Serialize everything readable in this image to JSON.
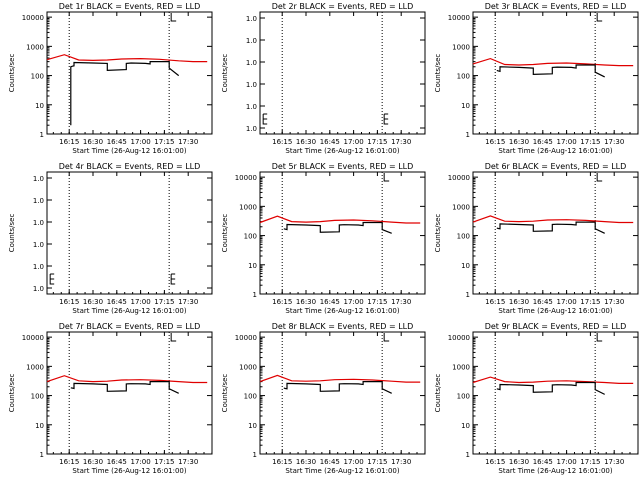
{
  "colors": {
    "events": "#000000",
    "lld": "#e00000",
    "background": "#ffffff"
  },
  "chart_data": [
    {
      "type": "line",
      "title": "Det 1r BLACK = Events, RED = LLD",
      "xlabel": "Start Time (26-Aug-12 16:01:00)",
      "ylabel": "Counts/sec",
      "scale": "log",
      "ylim": [
        1,
        15000
      ],
      "yticks": [
        "1",
        "10",
        "100",
        "1000",
        "10000"
      ],
      "xlim": [
        16.0167,
        17.75
      ],
      "xticks": [
        "16:15",
        "16:30",
        "16:45",
        "17:00",
        "17:15",
        "17:30"
      ],
      "vlines": [
        16.25,
        17.3
      ],
      "series": [
        {
          "name": "LLD",
          "color": "#e00000",
          "x": [
            16.0167,
            16.2,
            16.35,
            16.5,
            16.65,
            16.8,
            17.0,
            17.2,
            17.4,
            17.55,
            17.7
          ],
          "y": [
            350,
            520,
            340,
            330,
            340,
            370,
            380,
            360,
            320,
            300,
            300
          ]
        },
        {
          "name": "Events",
          "color": "#000000",
          "x": [
            16.2667,
            16.2667,
            16.2833,
            16.3,
            16.3,
            16.5,
            16.65,
            16.65,
            16.85,
            16.85,
            16.9,
            17.05,
            17.1,
            17.1,
            17.3,
            17.3,
            17.4
          ],
          "y": [
            2,
            200,
            210,
            215,
            280,
            270,
            260,
            150,
            160,
            260,
            270,
            260,
            250,
            300,
            300,
            180,
            100
          ]
        }
      ]
    },
    {
      "type": "line",
      "title": "Det 2r BLACK = Events, RED = LLD",
      "xlabel": "Start Time (26-Aug-12 16:01:00)",
      "ylabel": "Counts/sec",
      "scale": "linear",
      "ylim": [
        1,
        1.00001
      ],
      "yticks": [
        "1.0",
        "1.0",
        "1.0",
        "1.0",
        "1.0",
        "1.0"
      ],
      "xlim": [
        16.0167,
        17.75
      ],
      "xticks": [
        "16:15",
        "16:30",
        "16:45",
        "17:00",
        "17:15",
        "17:30"
      ],
      "vlines": [
        16.25,
        17.3
      ],
      "series": []
    },
    {
      "type": "line",
      "title": "Det 3r BLACK = Events, RED = LLD",
      "xlabel": "Start Time (26-Aug-12 16:01:00)",
      "ylabel": "Counts/sec",
      "scale": "log",
      "ylim": [
        1,
        15000
      ],
      "yticks": [
        "1",
        "10",
        "100",
        "1000",
        "10000"
      ],
      "xlim": [
        16.0167,
        17.75
      ],
      "xticks": [
        "16:15",
        "16:30",
        "16:45",
        "17:00",
        "17:15",
        "17:30"
      ],
      "vlines": [
        16.25,
        17.3
      ],
      "series": [
        {
          "name": "LLD",
          "color": "#e00000",
          "x": [
            16.0167,
            16.2,
            16.35,
            16.5,
            16.65,
            16.8,
            17.0,
            17.2,
            17.4,
            17.55,
            17.7
          ],
          "y": [
            250,
            380,
            240,
            230,
            240,
            260,
            270,
            250,
            230,
            220,
            220
          ]
        },
        {
          "name": "Events",
          "color": "#000000",
          "x": [
            16.2667,
            16.2833,
            16.3,
            16.3,
            16.5,
            16.65,
            16.65,
            16.85,
            16.85,
            16.9,
            17.05,
            17.1,
            17.1,
            17.3,
            17.3,
            17.4
          ],
          "y": [
            150,
            145,
            140,
            200,
            190,
            180,
            110,
            115,
            190,
            195,
            190,
            180,
            230,
            230,
            130,
            90
          ]
        }
      ]
    },
    {
      "type": "line",
      "title": "Det 4r BLACK = Events, RED = LLD",
      "xlabel": "Start Time (26-Aug-12 16:01:00)",
      "ylabel": "Counts/sec",
      "scale": "linear",
      "ylim": [
        1,
        1.00001
      ],
      "yticks": [
        "1.0",
        "1.0",
        "1.0",
        "1.0",
        "1.0",
        "1.0"
      ],
      "xlim": [
        16.0167,
        17.75
      ],
      "xticks": [
        "16:15",
        "16:30",
        "16:45",
        "17:00",
        "17:15",
        "17:30"
      ],
      "vlines": [
        16.25,
        17.3
      ],
      "series": []
    },
    {
      "type": "line",
      "title": "Det 5r BLACK = Events, RED = LLD",
      "xlabel": "Start Time (26-Aug-12 16:01:00)",
      "ylabel": "Counts/sec",
      "scale": "log",
      "ylim": [
        1,
        15000
      ],
      "yticks": [
        "1",
        "10",
        "100",
        "1000",
        "10000"
      ],
      "xlim": [
        16.0167,
        17.75
      ],
      "xticks": [
        "16:15",
        "16:30",
        "16:45",
        "17:00",
        "17:15",
        "17:30"
      ],
      "vlines": [
        16.25,
        17.3
      ],
      "series": [
        {
          "name": "LLD",
          "color": "#e00000",
          "x": [
            16.0167,
            16.2,
            16.35,
            16.5,
            16.65,
            16.8,
            17.0,
            17.2,
            17.4,
            17.55,
            17.7
          ],
          "y": [
            280,
            460,
            300,
            290,
            300,
            330,
            340,
            320,
            290,
            270,
            270
          ]
        },
        {
          "name": "Events",
          "color": "#000000",
          "x": [
            16.2667,
            16.2833,
            16.3,
            16.3,
            16.5,
            16.65,
            16.65,
            16.85,
            16.85,
            16.9,
            17.05,
            17.1,
            17.1,
            17.3,
            17.3,
            17.4
          ],
          "y": [
            170,
            165,
            160,
            240,
            230,
            220,
            130,
            135,
            230,
            235,
            230,
            220,
            280,
            280,
            160,
            120
          ]
        }
      ]
    },
    {
      "type": "line",
      "title": "Det 6r BLACK = Events, RED = LLD",
      "xlabel": "Start Time (26-Aug-12 16:01:00)",
      "ylabel": "Counts/sec",
      "scale": "log",
      "ylim": [
        1,
        15000
      ],
      "yticks": [
        "1",
        "10",
        "100",
        "1000",
        "10000"
      ],
      "xlim": [
        16.0167,
        17.75
      ],
      "xticks": [
        "16:15",
        "16:30",
        "16:45",
        "17:00",
        "17:15",
        "17:30"
      ],
      "vlines": [
        16.25,
        17.3
      ],
      "series": [
        {
          "name": "LLD",
          "color": "#e00000",
          "x": [
            16.0167,
            16.2,
            16.35,
            16.5,
            16.65,
            16.8,
            17.0,
            17.2,
            17.4,
            17.55,
            17.7
          ],
          "y": [
            290,
            470,
            310,
            300,
            310,
            340,
            350,
            330,
            300,
            280,
            280
          ]
        },
        {
          "name": "Events",
          "color": "#000000",
          "x": [
            16.2667,
            16.2833,
            16.3,
            16.3,
            16.5,
            16.65,
            16.65,
            16.85,
            16.85,
            16.9,
            17.05,
            17.1,
            17.1,
            17.3,
            17.3,
            17.4
          ],
          "y": [
            180,
            175,
            170,
            250,
            240,
            230,
            140,
            145,
            240,
            245,
            240,
            230,
            290,
            290,
            170,
            120
          ]
        }
      ]
    },
    {
      "type": "line",
      "title": "Det 7r BLACK = Events, RED = LLD",
      "xlabel": "Start Time (26-Aug-12 16:01:00)",
      "ylabel": "Counts/sec",
      "scale": "log",
      "ylim": [
        1,
        15000
      ],
      "yticks": [
        "1",
        "10",
        "100",
        "1000",
        "10000"
      ],
      "xlim": [
        16.0167,
        17.75
      ],
      "xticks": [
        "16:15",
        "16:30",
        "16:45",
        "17:00",
        "17:15",
        "17:30"
      ],
      "vlines": [
        16.25,
        17.3
      ],
      "series": [
        {
          "name": "LLD",
          "color": "#e00000",
          "x": [
            16.0167,
            16.2,
            16.35,
            16.5,
            16.65,
            16.8,
            17.0,
            17.2,
            17.4,
            17.55,
            17.7
          ],
          "y": [
            300,
            480,
            320,
            300,
            310,
            340,
            350,
            330,
            300,
            280,
            280
          ]
        },
        {
          "name": "Events",
          "color": "#000000",
          "x": [
            16.2667,
            16.2833,
            16.3,
            16.3,
            16.5,
            16.65,
            16.65,
            16.85,
            16.85,
            16.9,
            17.05,
            17.1,
            17.1,
            17.3,
            17.3,
            17.4
          ],
          "y": [
            185,
            180,
            175,
            260,
            250,
            240,
            140,
            145,
            250,
            255,
            250,
            240,
            300,
            300,
            170,
            120
          ]
        }
      ]
    },
    {
      "type": "line",
      "title": "Det 8r BLACK = Events, RED = LLD",
      "xlabel": "Start Time (26-Aug-12 16:01:00)",
      "ylabel": "Counts/sec",
      "scale": "log",
      "ylim": [
        1,
        15000
      ],
      "yticks": [
        "1",
        "10",
        "100",
        "1000",
        "10000"
      ],
      "xlim": [
        16.0167,
        17.75
      ],
      "xticks": [
        "16:15",
        "16:30",
        "16:45",
        "17:00",
        "17:15",
        "17:30"
      ],
      "vlines": [
        16.25,
        17.3
      ],
      "series": [
        {
          "name": "LLD",
          "color": "#e00000",
          "x": [
            16.0167,
            16.2,
            16.35,
            16.5,
            16.65,
            16.8,
            17.0,
            17.2,
            17.4,
            17.55,
            17.7
          ],
          "y": [
            300,
            490,
            320,
            310,
            320,
            350,
            360,
            340,
            310,
            290,
            290
          ]
        },
        {
          "name": "Events",
          "color": "#000000",
          "x": [
            16.2667,
            16.2833,
            16.3,
            16.3,
            16.5,
            16.65,
            16.65,
            16.85,
            16.85,
            16.9,
            17.05,
            17.1,
            17.1,
            17.3,
            17.3,
            17.4
          ],
          "y": [
            180,
            175,
            170,
            260,
            250,
            240,
            140,
            145,
            250,
            255,
            250,
            240,
            300,
            300,
            170,
            120
          ]
        }
      ]
    },
    {
      "type": "line",
      "title": "Det 9r BLACK = Events, RED = LLD",
      "xlabel": "Start Time (26-Aug-12 16:01:00)",
      "ylabel": "Counts/sec",
      "scale": "log",
      "ylim": [
        1,
        15000
      ],
      "yticks": [
        "1",
        "10",
        "100",
        "1000",
        "10000"
      ],
      "xlim": [
        16.0167,
        17.75
      ],
      "xticks": [
        "16:15",
        "16:30",
        "16:45",
        "17:00",
        "17:15",
        "17:30"
      ],
      "vlines": [
        16.25,
        17.3
      ],
      "series": [
        {
          "name": "LLD",
          "color": "#e00000",
          "x": [
            16.0167,
            16.2,
            16.35,
            16.5,
            16.65,
            16.8,
            17.0,
            17.2,
            17.4,
            17.55,
            17.7
          ],
          "y": [
            280,
            430,
            300,
            280,
            290,
            310,
            320,
            300,
            280,
            260,
            260
          ]
        },
        {
          "name": "Events",
          "color": "#000000",
          "x": [
            16.2667,
            16.2833,
            16.3,
            16.3,
            16.5,
            16.65,
            16.65,
            16.85,
            16.85,
            16.9,
            17.05,
            17.1,
            17.1,
            17.3,
            17.3,
            17.4
          ],
          "y": [
            170,
            165,
            160,
            240,
            230,
            220,
            130,
            135,
            230,
            235,
            230,
            220,
            280,
            280,
            160,
            110
          ]
        }
      ]
    }
  ]
}
